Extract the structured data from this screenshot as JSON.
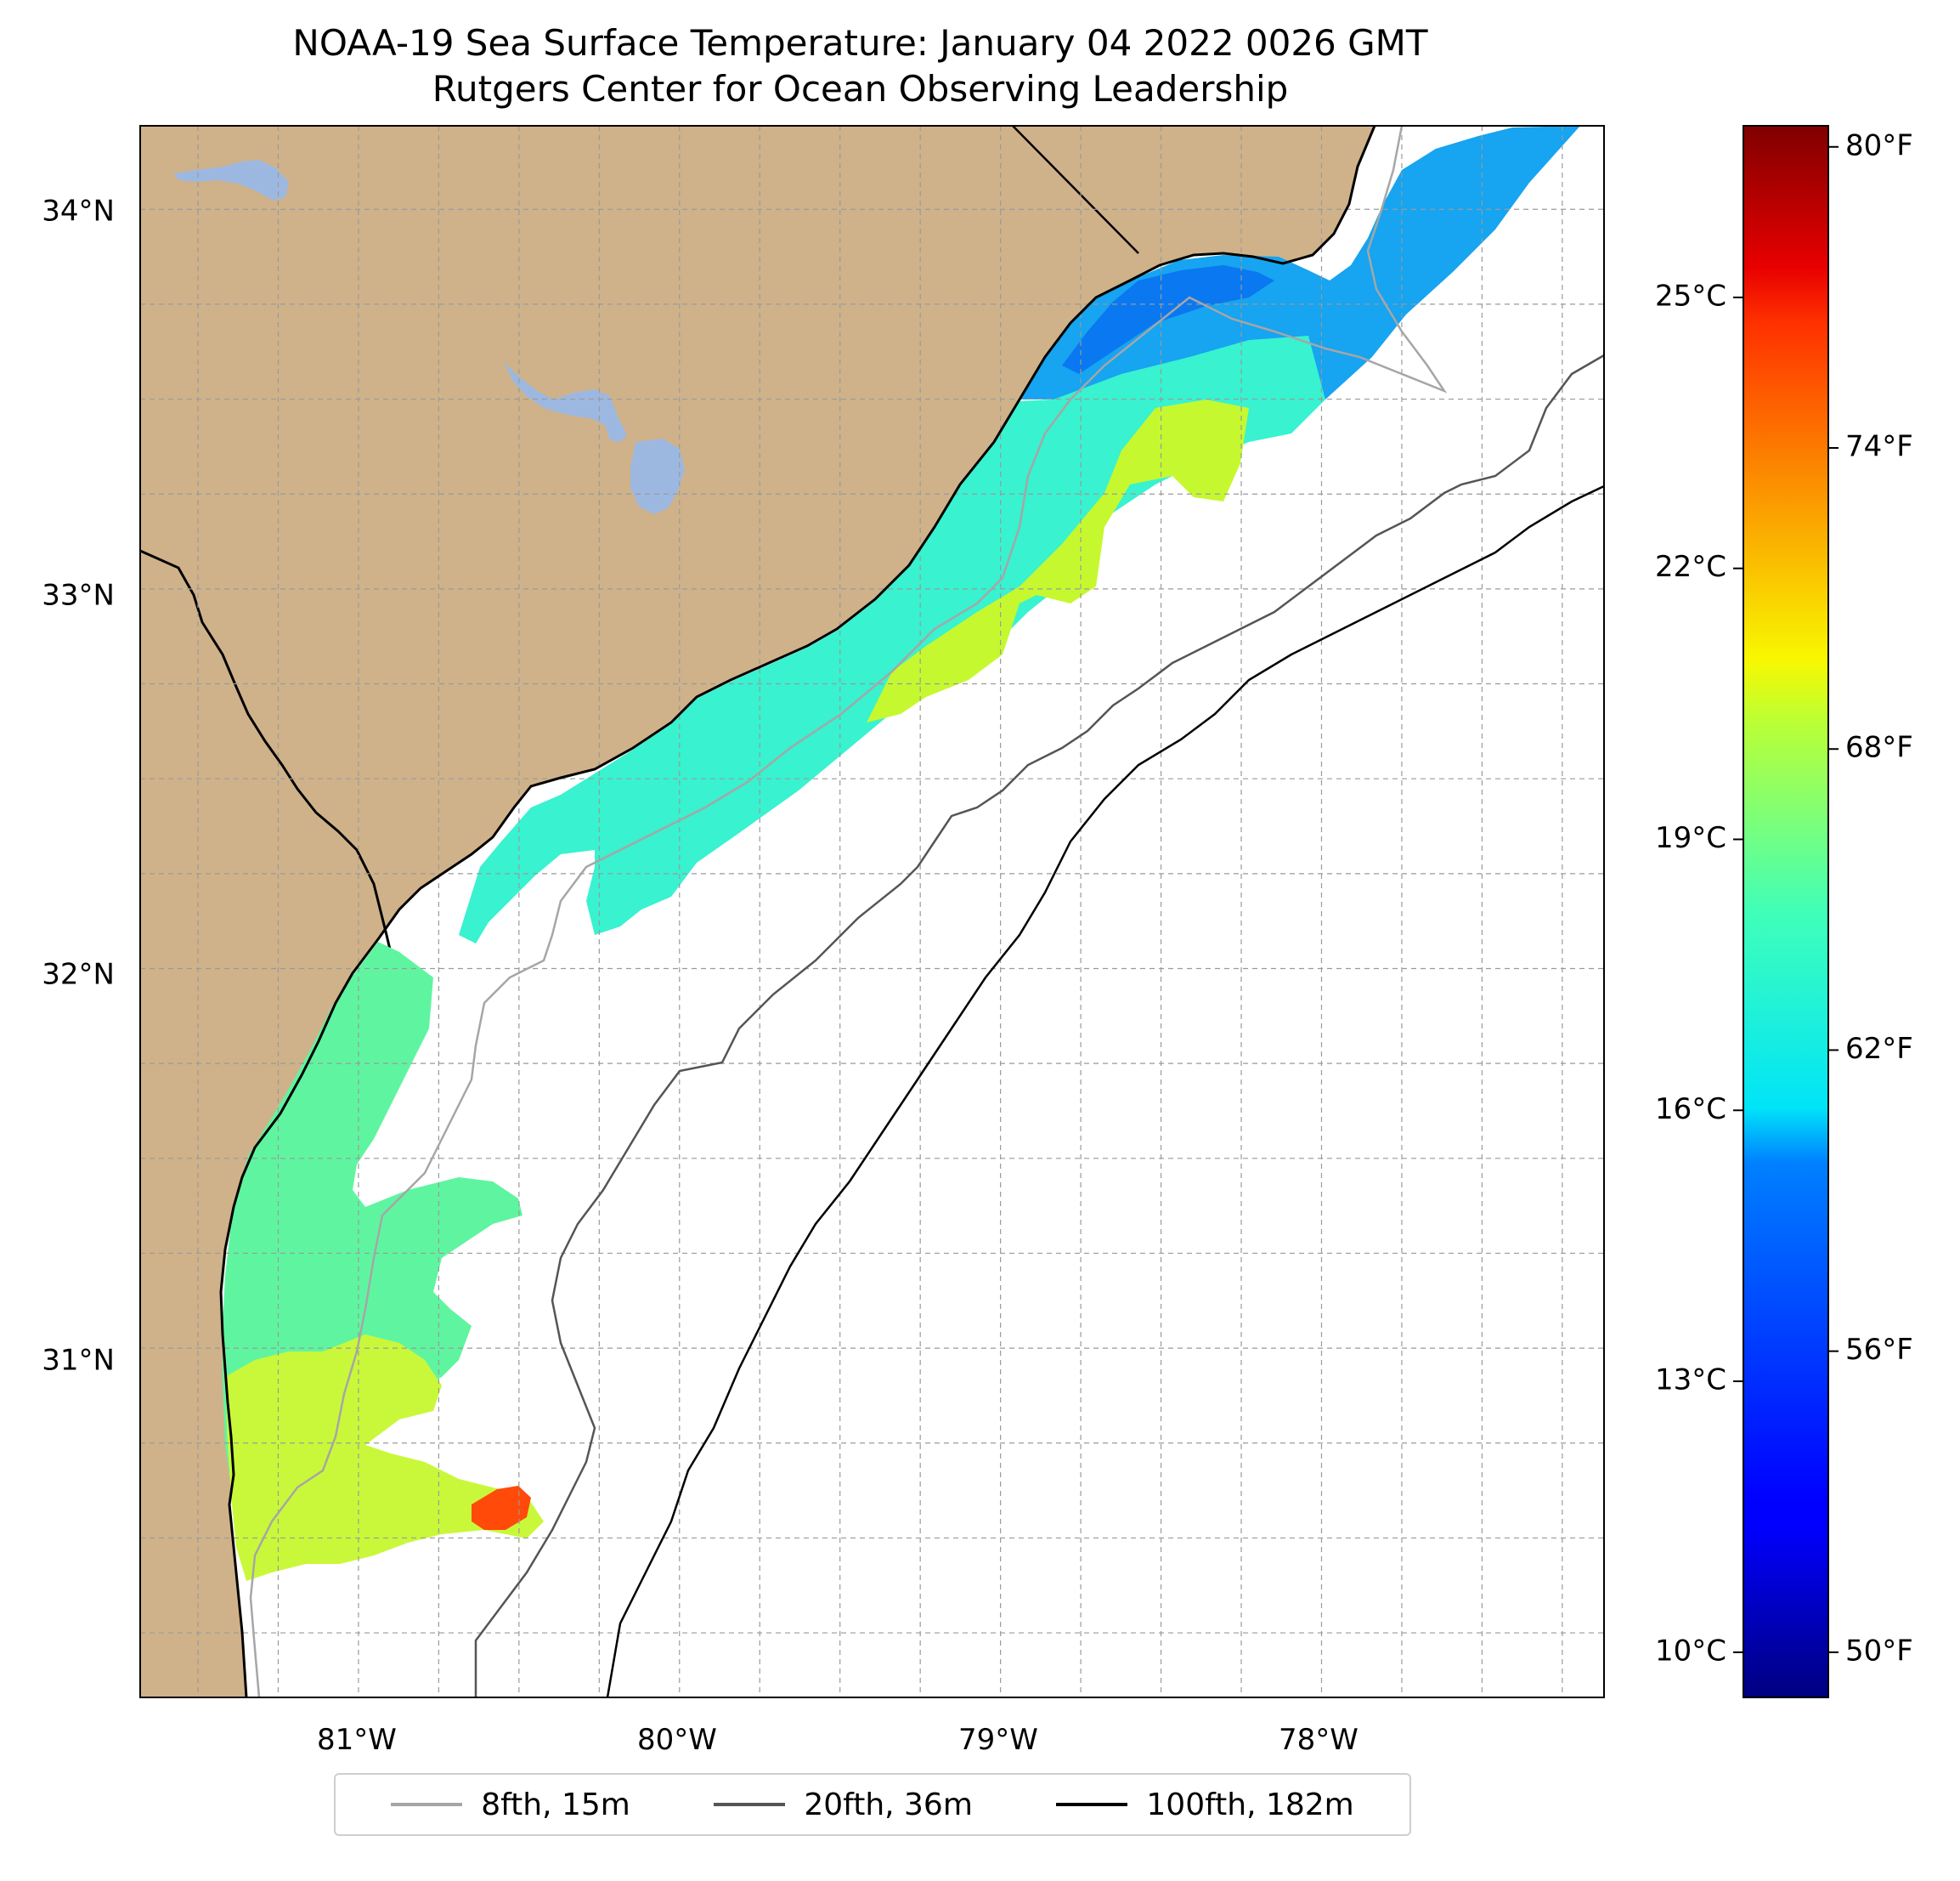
{
  "title": "NOAA-19 Sea Surface Temperature: January 04 2022 0026 GMT",
  "subtitle": "Rutgers Center for Ocean Observing Leadership",
  "map": {
    "lon_range": [
      -81.68,
      -77.12
    ],
    "lat_range": [
      30.08,
      34.22
    ],
    "lat_ticks": [
      {
        "value": 31,
        "label": "31°N"
      },
      {
        "value": 32,
        "label": "32°N"
      },
      {
        "value": 33,
        "label": "33°N"
      },
      {
        "value": 34,
        "label": "34°N"
      }
    ],
    "lon_ticks": [
      {
        "value": -81,
        "label": "81°W"
      },
      {
        "value": -80,
        "label": "80°W"
      },
      {
        "value": -79,
        "label": "79°W"
      },
      {
        "value": -78,
        "label": "78°W"
      }
    ],
    "grid": true,
    "colors": {
      "land": "#cfb28a",
      "lakes": "#9db8e0",
      "ocean": "#ffffff",
      "coast": "#000000"
    }
  },
  "colorbar": {
    "celsius_ticks": [
      {
        "value": 10,
        "label": "10°C"
      },
      {
        "value": 13,
        "label": "13°C"
      },
      {
        "value": 16,
        "label": "16°C"
      },
      {
        "value": 19,
        "label": "19°C"
      },
      {
        "value": 22,
        "label": "22°C"
      },
      {
        "value": 25,
        "label": "25°C"
      }
    ],
    "fahrenheit_ticks": [
      {
        "value": 50,
        "label": "50°F"
      },
      {
        "value": 56,
        "label": "56°F"
      },
      {
        "value": 62,
        "label": "62°F"
      },
      {
        "value": 68,
        "label": "68°F"
      },
      {
        "value": 74,
        "label": "74°F"
      },
      {
        "value": 80,
        "label": "80°F"
      }
    ],
    "range_c": [
      9.5,
      26.9
    ],
    "colormap": "jet"
  },
  "legend": {
    "items": [
      {
        "label": "8fth, 15m",
        "color": "#a6a6a6"
      },
      {
        "label": "20fth, 36m",
        "color": "#555555"
      },
      {
        "label": "100fth, 182m",
        "color": "#000000"
      }
    ]
  }
}
